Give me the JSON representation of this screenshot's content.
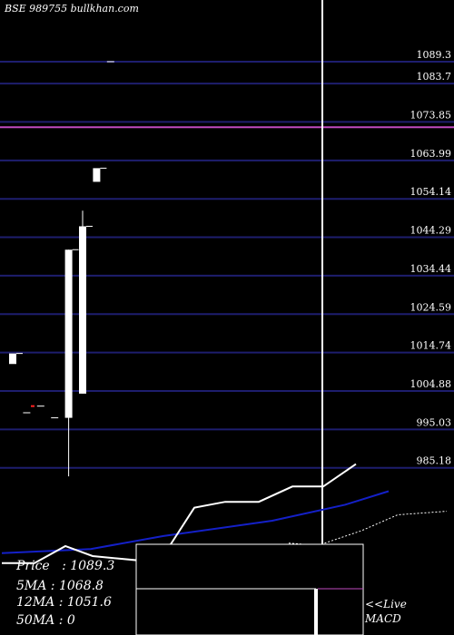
{
  "header": {
    "title": "BSE 989755 bullkhan.com"
  },
  "chart_data": {
    "type": "candlestick",
    "price_axis_ticks": [
      1089.3,
      1083.7,
      1073.85,
      1063.99,
      1054.14,
      1044.29,
      1034.44,
      1024.59,
      1014.74,
      1004.88,
      995.03,
      985.18
    ],
    "price_axis_labels": [
      "1089.3",
      "1083.7",
      "1073.85",
      "1063.99",
      "1054.14",
      "1044.29",
      "1034.44",
      "1024.59",
      "1014.74",
      "1004.88",
      "995.03",
      "985.18"
    ],
    "candles": [
      {
        "open": 1014.5,
        "high": 1014.5,
        "low": 1011.8,
        "close": 1011.8
      },
      {
        "open": 999.3,
        "high": 999.3,
        "low": 999.3,
        "close": 999.3
      },
      {
        "open": 1001.0,
        "high": 1001.0,
        "low": 1001.0,
        "close": 1001.0
      },
      {
        "open": 998.0,
        "high": 998.0,
        "low": 998.0,
        "close": 998.0
      },
      {
        "open": 998.0,
        "high": 1041.1,
        "low": 983.0,
        "close": 1041.1
      },
      {
        "open": 1047.1,
        "high": 1051.1,
        "low": 1004.2,
        "close": 1004.2
      },
      {
        "open": 1062.0,
        "high": 1062.0,
        "low": 1058.5,
        "close": 1058.5
      },
      {
        "open": 1089.3,
        "high": 1089.3,
        "low": 1089.3,
        "close": 1089.3
      }
    ],
    "indicator_lines": {
      "ma_short": [
        [
          2,
          0.32
        ],
        [
          38,
          0.32
        ],
        [
          72,
          0.03
        ],
        [
          102,
          0.2
        ],
        [
          150,
          0.27
        ],
        [
          188,
          0.0
        ],
        [
          214,
          -0.62
        ],
        [
          248,
          -0.72
        ],
        [
          285,
          -0.72
        ],
        [
          322,
          -0.98
        ],
        [
          356,
          -0.98
        ],
        [
          392,
          -1.36
        ]
      ],
      "ma_long": [
        [
          2,
          0.15
        ],
        [
          100,
          0.08
        ],
        [
          180,
          -0.14
        ],
        [
          300,
          -0.4
        ],
        [
          380,
          -0.67
        ],
        [
          428,
          -0.9
        ]
      ],
      "macd_signal": [
        [
          318,
          -0.02
        ],
        [
          350,
          0.02
        ],
        [
          398,
          -0.23
        ],
        [
          438,
          -0.5
        ],
        [
          492,
          -0.56
        ]
      ]
    },
    "current_level": 1072.5,
    "stats": [
      {
        "label": "Price",
        "value": "1089.3"
      },
      {
        "label": "5MA",
        "value": "1068.8"
      },
      {
        "label": "12MA",
        "value": "1051.6"
      },
      {
        "label": "50MA",
        "value": "0"
      }
    ],
    "annotation": "<<Live MACD",
    "annotation_lines": [
      "<<Live",
      "MACD"
    ],
    "colors": {
      "background": "#000000",
      "grid": "#1e1e6e",
      "candle": "#ffffff",
      "ma_short": "#ffffff",
      "ma_long": "#1420c8",
      "current_level": "#c04bc0",
      "macd_signal": "#ffffff"
    }
  },
  "stats_text": {
    "price": "Price   : 1089.3",
    "ma5": "5MA : 1068.8",
    "ma12": "12MA : 1051.6",
    "ma50": "50MA : 0"
  },
  "annotation_text": {
    "line1": "<<Live",
    "line2": "MACD"
  }
}
